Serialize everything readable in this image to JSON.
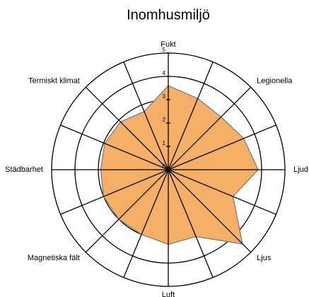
{
  "chart_data": {
    "type": "radar",
    "title": "Inomhusmiljö",
    "categories": [
      "Fukt",
      null,
      "Legionella",
      null,
      "Ljud",
      null,
      "Ljus",
      null,
      "Luft",
      null,
      "Magnetiska fält",
      null,
      "Städbarhet",
      null,
      "Termiskt klimat",
      null
    ],
    "values": [
      3.6,
      3.3,
      3.2,
      3.5,
      3.85,
      3.0,
      4.5,
      3.1,
      3.2,
      3.0,
      3.0,
      3.0,
      2.9,
      2.95,
      2.9,
      2.7
    ],
    "color": "#f5b066",
    "rlim": [
      0,
      5
    ],
    "rticks": [
      0,
      1,
      2,
      3,
      4,
      5
    ]
  }
}
